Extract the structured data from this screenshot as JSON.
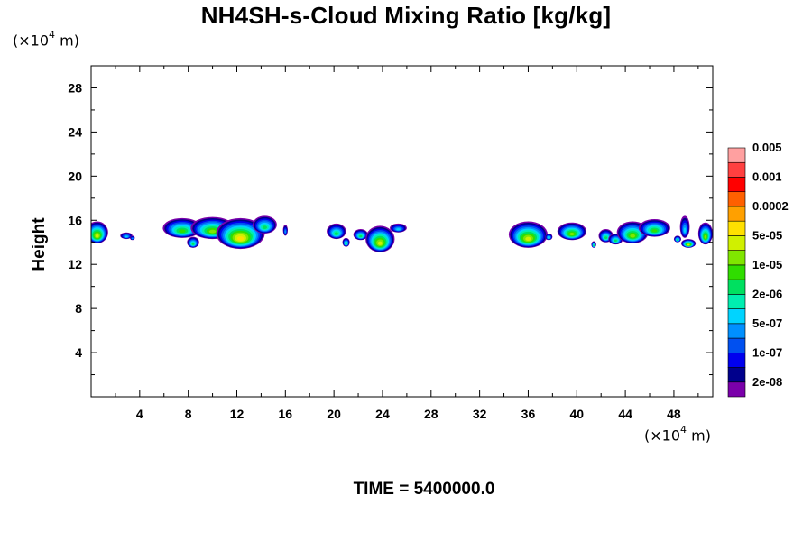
{
  "chart_data": {
    "type": "heatmap",
    "title": "NH4SH-s-Cloud Mixing Ratio [kg/kg]",
    "ylabel": "Height",
    "xlabel": "",
    "x_unit_prefix": "(×10",
    "x_unit_exp": "4",
    "x_unit_suffix": " m)",
    "y_unit_prefix": "(×10",
    "y_unit_exp": "4",
    "y_unit_suffix": " m)",
    "time_label": "TIME = 5400000.0",
    "xlim": [
      0,
      51.2
    ],
    "ylim": [
      0,
      30
    ],
    "x_ticks": [
      "4",
      "8",
      "12",
      "16",
      "20",
      "24",
      "28",
      "32",
      "36",
      "40",
      "44",
      "48"
    ],
    "y_ticks": [
      "4",
      "8",
      "12",
      "16",
      "20",
      "24",
      "28"
    ],
    "colorbar": {
      "colors": [
        "#7a00aa",
        "#00008c",
        "#0000ee",
        "#0050f0",
        "#0090ff",
        "#00d4ff",
        "#00eeb0",
        "#00e060",
        "#30dd00",
        "#80e600",
        "#d0f000",
        "#ffe000",
        "#ffa000",
        "#ff6000",
        "#ff0000",
        "#ff4040",
        "#ffa0a0"
      ],
      "labels": [
        "2e-08",
        "1e-07",
        "5e-07",
        "2e-06",
        "1e-05",
        "5e-05",
        "0.0002",
        "0.001",
        "0.005"
      ]
    },
    "cloud_cells": [
      {
        "x": 0.5,
        "y": 14.9,
        "rx": 0.9,
        "ry": 1.0,
        "peak": 10
      },
      {
        "x": 2.9,
        "y": 14.6,
        "rx": 0.5,
        "ry": 0.3,
        "peak": 5
      },
      {
        "x": 3.4,
        "y": 14.4,
        "rx": 0.2,
        "ry": 0.2,
        "peak": 4
      },
      {
        "x": 7.5,
        "y": 15.3,
        "rx": 1.6,
        "ry": 0.9,
        "peak": 8
      },
      {
        "x": 8.4,
        "y": 14.0,
        "rx": 0.5,
        "ry": 0.5,
        "peak": 7
      },
      {
        "x": 10.0,
        "y": 15.3,
        "rx": 1.8,
        "ry": 1.0,
        "peak": 9
      },
      {
        "x": 12.3,
        "y": 14.8,
        "rx": 2.0,
        "ry": 1.4,
        "peak": 11
      },
      {
        "x": 14.3,
        "y": 15.6,
        "rx": 1.0,
        "ry": 0.8,
        "peak": 7
      },
      {
        "x": 16.0,
        "y": 15.1,
        "rx": 0.2,
        "ry": 0.5,
        "peak": 4
      },
      {
        "x": 20.2,
        "y": 15.0,
        "rx": 0.8,
        "ry": 0.7,
        "peak": 7
      },
      {
        "x": 21.0,
        "y": 14.0,
        "rx": 0.3,
        "ry": 0.4,
        "peak": 7
      },
      {
        "x": 22.2,
        "y": 14.7,
        "rx": 0.6,
        "ry": 0.5,
        "peak": 7
      },
      {
        "x": 23.8,
        "y": 14.3,
        "rx": 1.2,
        "ry": 1.2,
        "peak": 10
      },
      {
        "x": 25.3,
        "y": 15.3,
        "rx": 0.7,
        "ry": 0.4,
        "peak": 5
      },
      {
        "x": 36.0,
        "y": 14.7,
        "rx": 1.6,
        "ry": 1.2,
        "peak": 10
      },
      {
        "x": 37.7,
        "y": 14.5,
        "rx": 0.3,
        "ry": 0.3,
        "peak": 6
      },
      {
        "x": 39.6,
        "y": 15.0,
        "rx": 1.2,
        "ry": 0.8,
        "peak": 9
      },
      {
        "x": 41.4,
        "y": 13.8,
        "rx": 0.2,
        "ry": 0.3,
        "peak": 7
      },
      {
        "x": 42.4,
        "y": 14.6,
        "rx": 0.6,
        "ry": 0.6,
        "peak": 7
      },
      {
        "x": 43.2,
        "y": 14.3,
        "rx": 0.6,
        "ry": 0.5,
        "peak": 7
      },
      {
        "x": 44.6,
        "y": 14.9,
        "rx": 1.3,
        "ry": 1.0,
        "peak": 9
      },
      {
        "x": 46.4,
        "y": 15.3,
        "rx": 1.3,
        "ry": 0.8,
        "peak": 8
      },
      {
        "x": 48.3,
        "y": 14.3,
        "rx": 0.3,
        "ry": 0.3,
        "peak": 7
      },
      {
        "x": 48.9,
        "y": 15.4,
        "rx": 0.4,
        "ry": 1.0,
        "peak": 5
      },
      {
        "x": 49.2,
        "y": 13.9,
        "rx": 0.6,
        "ry": 0.4,
        "peak": 10
      },
      {
        "x": 50.6,
        "y": 14.8,
        "rx": 0.6,
        "ry": 1.0,
        "peak": 9
      }
    ]
  }
}
